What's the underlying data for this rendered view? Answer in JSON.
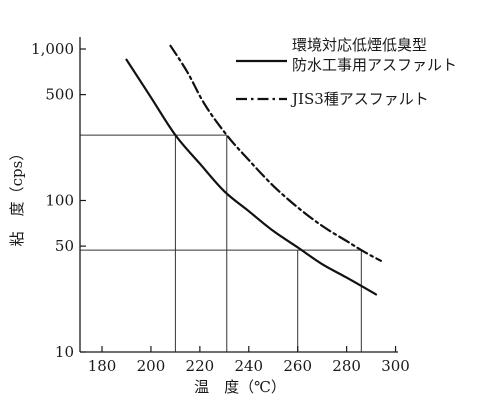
{
  "chart_data": {
    "type": "line",
    "xlabel": "温　度（℃）",
    "ylabel": "粘　度（cps）",
    "x_ticks": [
      180,
      200,
      220,
      240,
      260,
      280,
      300
    ],
    "y_ticks": [
      {
        "value": 10,
        "label": "10"
      },
      {
        "value": 50,
        "label": "50"
      },
      {
        "value": 100,
        "label": "100"
      },
      {
        "value": 500,
        "label": "500"
      },
      {
        "value": 1000,
        "label": "1,000"
      }
    ],
    "xlim": [
      171,
      301
    ],
    "ylim": [
      10,
      1200
    ],
    "y_scale": "log",
    "series": [
      {
        "name": "環境対応低煙低臭型防水工事用アスファルト",
        "name_lines": [
          "環境対応低煙低臭型",
          "防水工事用アスファルト"
        ],
        "style": "solid",
        "x": [
          190,
          200,
          210,
          220,
          230,
          240,
          250,
          260,
          270,
          280,
          292
        ],
        "y": [
          850,
          480,
          270,
          175,
          115,
          85,
          63,
          49,
          38,
          31,
          24
        ]
      },
      {
        "name": "JIS3種アスファルト",
        "name_lines": [
          "JIS3種アスファルト"
        ],
        "style": "dashdot",
        "x": [
          208,
          215,
          222,
          231,
          240,
          250,
          260,
          270,
          280,
          287,
          294
        ],
        "y": [
          1050,
          700,
          430,
          270,
          185,
          125,
          90,
          68,
          54,
          46,
          40
        ]
      }
    ],
    "guides": {
      "horizontal": [
        270,
        47
      ],
      "vertical": [
        210,
        231,
        260,
        286
      ]
    },
    "grid": false,
    "legend": "top-right"
  }
}
